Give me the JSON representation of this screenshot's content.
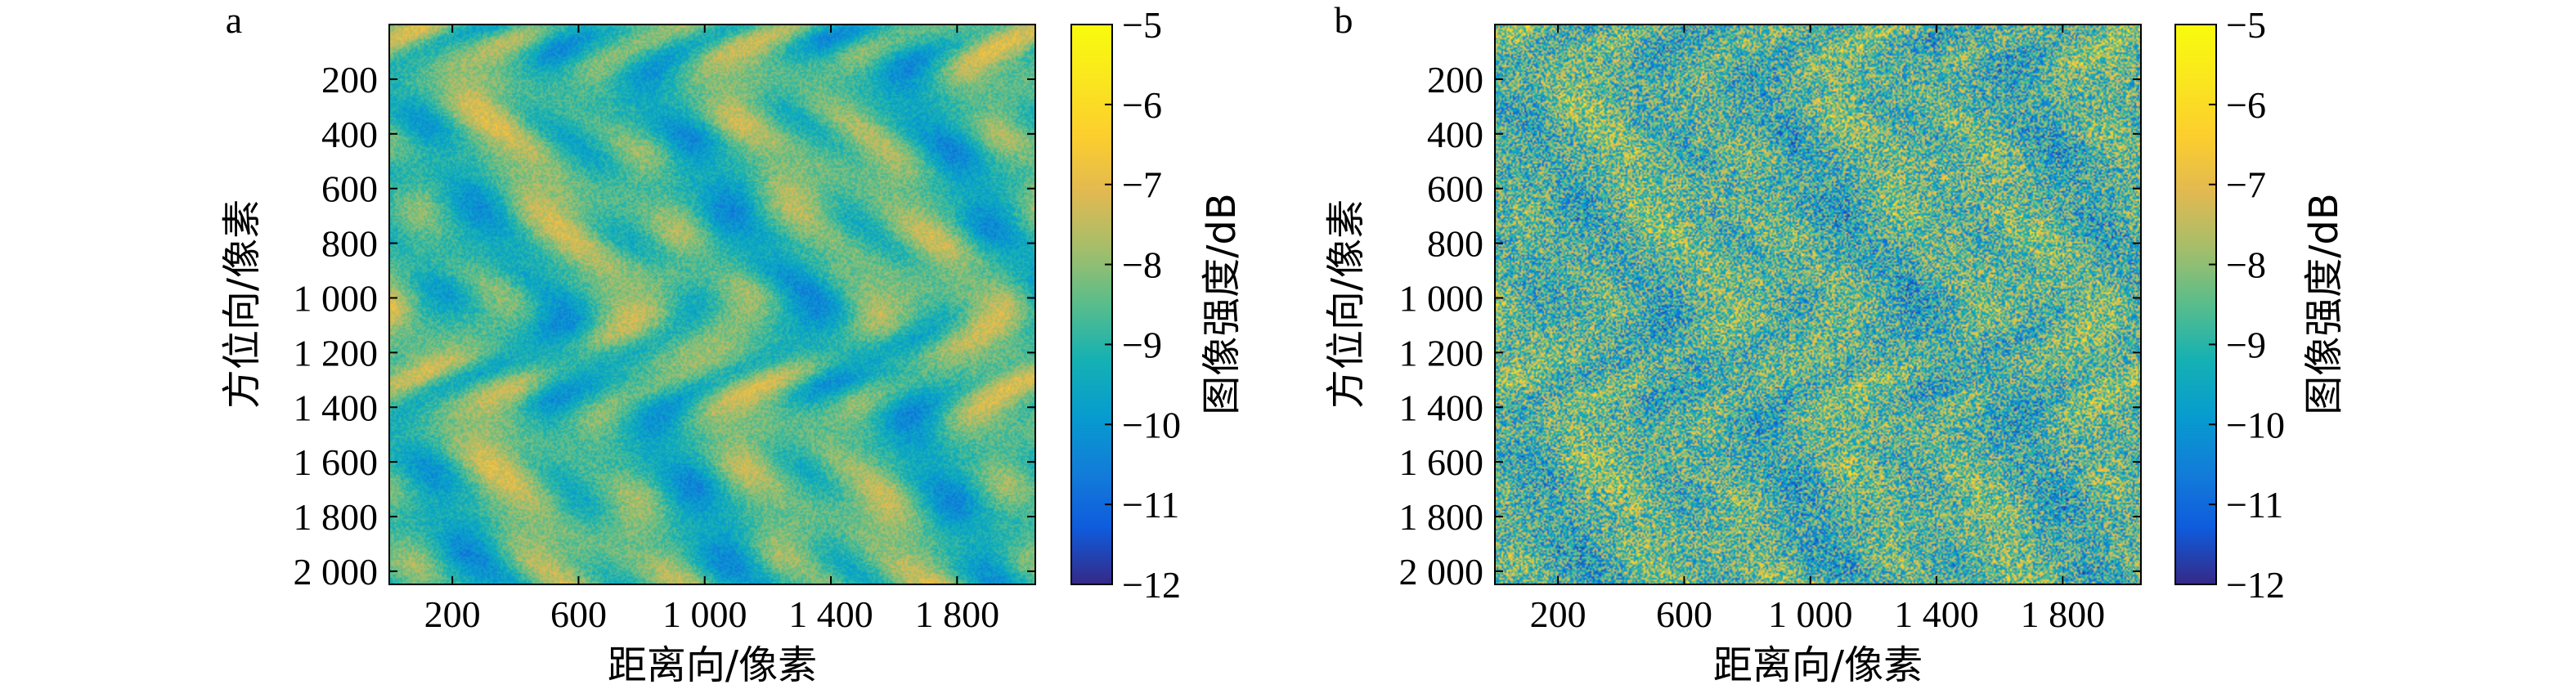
{
  "chart_data": [
    {
      "type": "heatmap",
      "panel_label": "a",
      "xlabel": "距离向/像素",
      "ylabel": "方位向/像素",
      "xticks": [
        200,
        600,
        1000,
        1400,
        1800
      ],
      "xtick_labels": [
        "200",
        "600",
        "1 000",
        "1 400",
        "1 800"
      ],
      "yticks": [
        200,
        400,
        600,
        800,
        1000,
        1200,
        1400,
        1600,
        1800,
        2000
      ],
      "ytick_labels": [
        "200",
        "400",
        "600",
        "800",
        "1 000",
        "1 200",
        "1 400",
        "1 600",
        "1 800",
        "2 000"
      ],
      "xlim": [
        0,
        2048
      ],
      "ylim": [
        2048,
        0
      ],
      "colorbar": {
        "label": "图像强度/dB",
        "min": -12,
        "max": -5,
        "ticks": [
          -5,
          -6,
          -7,
          -8,
          -9,
          -10,
          -11,
          -12
        ],
        "tick_labels": [
          "−5",
          "−6",
          "−7",
          "−8",
          "−9",
          "−10",
          "−11",
          "−12"
        ],
        "colormap": "parula"
      },
      "noise_level": 0.12
    },
    {
      "type": "heatmap",
      "panel_label": "b",
      "xlabel": "距离向/像素",
      "ylabel": "方位向/像素",
      "xticks": [
        200,
        600,
        1000,
        1400,
        1800
      ],
      "xtick_labels": [
        "200",
        "600",
        "1 000",
        "1 400",
        "1 800"
      ],
      "yticks": [
        200,
        400,
        600,
        800,
        1000,
        1200,
        1400,
        1600,
        1800,
        2000
      ],
      "ytick_labels": [
        "200",
        "400",
        "600",
        "800",
        "1 000",
        "1 200",
        "1 400",
        "1 600",
        "1 800",
        "2 000"
      ],
      "xlim": [
        0,
        2048
      ],
      "ylim": [
        2048,
        0
      ],
      "colorbar": {
        "label": "图像强度/dB",
        "min": -12,
        "max": -5,
        "ticks": [
          -5,
          -6,
          -7,
          -8,
          -9,
          -10,
          -11,
          -12
        ],
        "tick_labels": [
          "−5",
          "−6",
          "−7",
          "−8",
          "−9",
          "−10",
          "−11",
          "−12"
        ],
        "colormap": "parula"
      },
      "noise_level": 0.85
    }
  ]
}
